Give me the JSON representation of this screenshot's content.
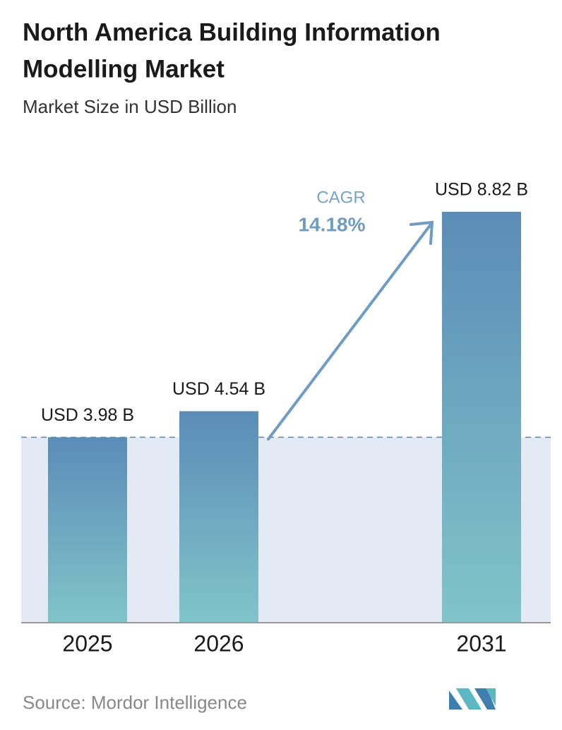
{
  "chart_data": {
    "type": "bar",
    "title": [
      "North America Building Information",
      "Modelling Market"
    ],
    "subtitle": "Market Size in USD Billion",
    "categories": [
      "2025",
      "2026",
      "2031"
    ],
    "values": [
      3.98,
      4.54,
      8.82
    ],
    "value_labels": [
      "USD 3.98 B",
      "USD 4.54 B",
      "USD 8.82 B"
    ],
    "colors": [
      "#5a8cb7",
      "#80c5c9"
    ],
    "annotation": {
      "label": "CAGR",
      "value": "14.18%"
    },
    "source": "Source:  Mordor Intelligence"
  }
}
